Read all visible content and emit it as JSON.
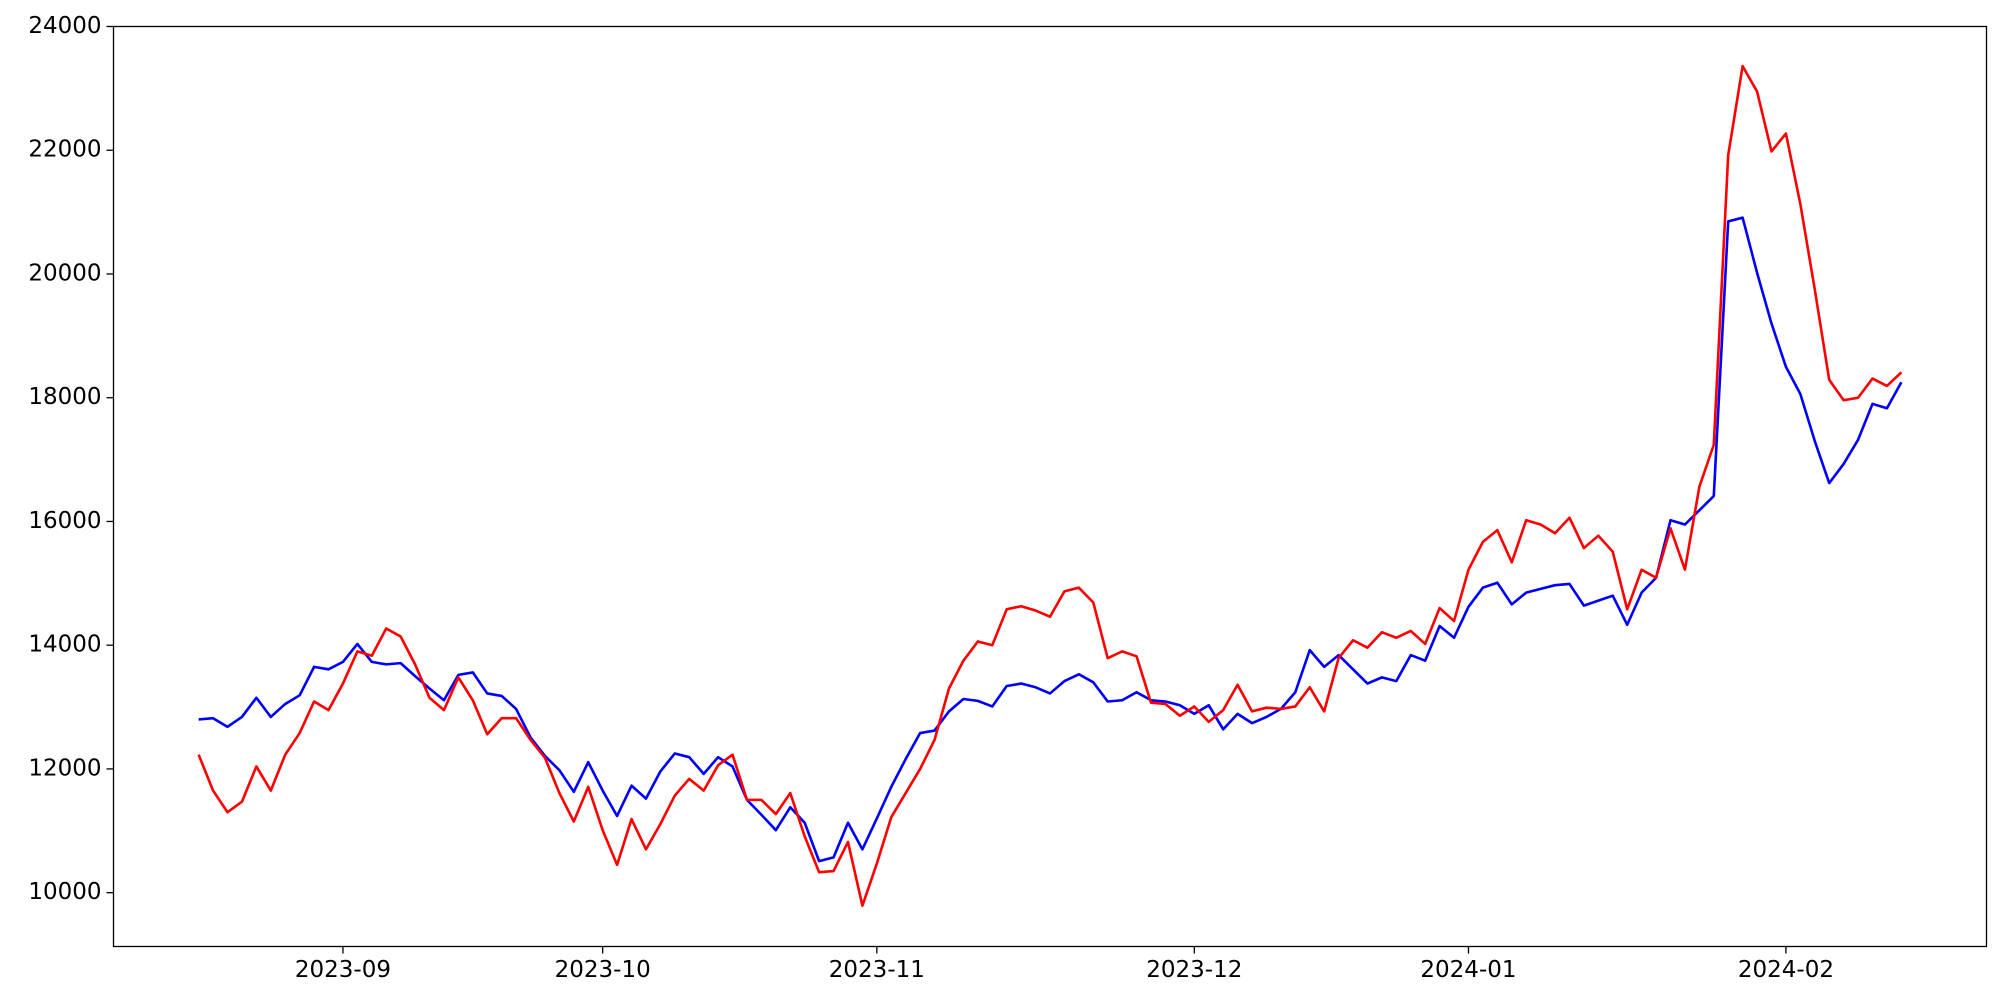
{
  "chart_data": {
    "type": "line",
    "categories": [
      null,
      null,
      null,
      null,
      null,
      null,
      null,
      null,
      null,
      null,
      "2023-09",
      null,
      null,
      null,
      null,
      null,
      null,
      null,
      null,
      null,
      null,
      null,
      null,
      null,
      null,
      null,
      null,
      null,
      "2023-10",
      null,
      null,
      null,
      null,
      null,
      null,
      null,
      null,
      null,
      null,
      null,
      null,
      null,
      null,
      null,
      null,
      null,
      null,
      "2023-11",
      null,
      null,
      null,
      null,
      null,
      null,
      null,
      null,
      null,
      null,
      null,
      null,
      null,
      null,
      null,
      null,
      null,
      null,
      null,
      null,
      null,
      "2023-12",
      null,
      null,
      null,
      null,
      null,
      null,
      null,
      null,
      null,
      null,
      null,
      null,
      null,
      null,
      null,
      null,
      null,
      null,
      "2024-01",
      null,
      null,
      null,
      null,
      null,
      null,
      null,
      null,
      null,
      null,
      null,
      null,
      null,
      null,
      null,
      null,
      null,
      null,
      null,
      null,
      null,
      "2024-02",
      null,
      null,
      null,
      null,
      null,
      null,
      null,
      null
    ],
    "series": [
      {
        "color": "#0000ff",
        "values": [
          12800,
          12820,
          12680,
          12840,
          13150,
          12840,
          13050,
          13190,
          13650,
          13610,
          13730,
          14020,
          13730,
          13690,
          13710,
          13500,
          13300,
          13110,
          13520,
          13560,
          13220,
          13180,
          12970,
          12510,
          12210,
          11980,
          11630,
          12110,
          11650,
          11240,
          11730,
          11520,
          11960,
          12250,
          12190,
          11920,
          12190,
          12040,
          11500,
          11260,
          11010,
          11380,
          11130,
          10510,
          10570,
          11130,
          10700,
          11200,
          11710,
          12160,
          12580,
          12620,
          12930,
          13130,
          13100,
          13010,
          13340,
          13380,
          13320,
          13220,
          13420,
          13530,
          13400,
          13090,
          13110,
          13240,
          13110,
          13090,
          13030,
          12890,
          13030,
          12640,
          12890,
          12740,
          12840,
          12970,
          13240,
          13920,
          13650,
          13840,
          13610,
          13380,
          13480,
          13420,
          13840,
          13750,
          14310,
          14120,
          14620,
          14930,
          15010,
          14660,
          14850,
          14910,
          14970,
          14990,
          14640,
          14720,
          14800,
          14330,
          14850,
          15090,
          16020,
          15950,
          16180,
          16410,
          20850,
          20910,
          20020,
          19200,
          18500,
          18060,
          17300,
          16620,
          16930,
          17320,
          17900,
          17830,
          18250
        ]
      },
      {
        "color": "#ff0000",
        "values": [
          12230,
          11650,
          11300,
          11470,
          12040,
          11650,
          12230,
          12580,
          13090,
          12950,
          13380,
          13900,
          13830,
          14270,
          14140,
          13690,
          13150,
          12950,
          13480,
          13110,
          12560,
          12820,
          12820,
          12470,
          12180,
          11610,
          11150,
          11710,
          11010,
          10450,
          11190,
          10700,
          11110,
          11570,
          11840,
          11650,
          12060,
          12230,
          11500,
          11500,
          11270,
          11610,
          10910,
          10330,
          10350,
          10820,
          9790,
          10470,
          11220,
          11610,
          12000,
          12470,
          13300,
          13750,
          14060,
          14000,
          14580,
          14630,
          14560,
          14460,
          14870,
          14930,
          14690,
          13790,
          13900,
          13820,
          13070,
          13050,
          12860,
          13010,
          12760,
          12950,
          13360,
          12930,
          12990,
          12970,
          13010,
          13320,
          12930,
          13790,
          14080,
          13960,
          14210,
          14120,
          14230,
          14020,
          14600,
          14390,
          15220,
          15670,
          15860,
          15340,
          16020,
          15950,
          15810,
          16060,
          15570,
          15770,
          15510,
          14580,
          15220,
          15090,
          15890,
          15220,
          16560,
          17240,
          21920,
          23360,
          22950,
          21980,
          22270,
          21130,
          19750,
          18290,
          17960,
          18000,
          18310,
          18190,
          18410
        ]
      }
    ],
    "ylim": [
      9130,
      24000
    ],
    "yticks": [
      10000,
      12000,
      14000,
      16000,
      18000,
      20000,
      22000,
      24000
    ],
    "grid": false
  }
}
